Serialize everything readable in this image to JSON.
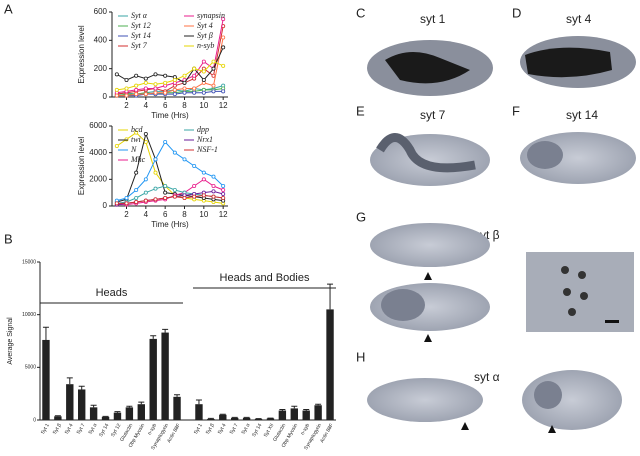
{
  "panels": [
    "A",
    "B",
    "C",
    "D",
    "E",
    "F",
    "G",
    "H"
  ],
  "images": {
    "c": "syt 1",
    "d": "syt 4",
    "e": "syt 7",
    "f": "syt 14",
    "g": "syt β",
    "h": "syt α"
  },
  "chart_data": [
    {
      "type": "line",
      "ylabel": "Expression level",
      "xlabel": "Time (Hrs)",
      "x": [
        1,
        2,
        3,
        4,
        5,
        6,
        7,
        8,
        9,
        10,
        11,
        12
      ],
      "xlim": [
        0.5,
        12.5
      ],
      "xticks": [
        2,
        4,
        6,
        8,
        10,
        12
      ],
      "ylim": [
        0,
        600
      ],
      "yticks": [
        0,
        200,
        400,
        600
      ],
      "series": [
        {
          "name": "Syt α",
          "color": "#3aa6a6",
          "values": [
            20,
            30,
            20,
            30,
            40,
            40,
            50,
            40,
            60,
            50,
            60,
            80
          ]
        },
        {
          "name": "Syt 12",
          "color": "#4caf50",
          "values": [
            10,
            20,
            20,
            30,
            20,
            30,
            30,
            40,
            40,
            50,
            50,
            60
          ]
        },
        {
          "name": "Syt 14",
          "color": "#3f51b5",
          "values": [
            10,
            10,
            10,
            20,
            20,
            20,
            20,
            30,
            30,
            30,
            40,
            40
          ]
        },
        {
          "name": "Syt 7",
          "color": "#d32f2f",
          "values": [
            20,
            30,
            40,
            50,
            60,
            40,
            80,
            100,
            130,
            200,
            150,
            500
          ]
        },
        {
          "name": "synapsin",
          "color": "#e91e8c",
          "values": [
            30,
            40,
            50,
            60,
            60,
            80,
            100,
            120,
            150,
            250,
            200,
            550
          ]
        },
        {
          "name": "Syt 4",
          "color": "#ff7043",
          "values": [
            10,
            10,
            20,
            20,
            30,
            30,
            50,
            60,
            60,
            100,
            80,
            420
          ]
        },
        {
          "name": "Syt β",
          "color": "#222222",
          "values": [
            160,
            120,
            150,
            130,
            160,
            150,
            140,
            100,
            200,
            120,
            200,
            350
          ]
        },
        {
          "name": "n-syb",
          "color": "#e6d400",
          "values": [
            50,
            60,
            80,
            100,
            90,
            100,
            120,
            150,
            200,
            180,
            250,
            220
          ]
        }
      ]
    },
    {
      "type": "line",
      "ylabel": "Expression level",
      "xlabel": "Time (Hrs)",
      "x": [
        1,
        2,
        3,
        4,
        5,
        6,
        7,
        8,
        9,
        10,
        11,
        12
      ],
      "xlim": [
        0.5,
        12.5
      ],
      "xticks": [
        2,
        4,
        6,
        8,
        10,
        12
      ],
      "ylim": [
        0,
        6000
      ],
      "yticks": [
        0,
        2000,
        4000,
        6000
      ],
      "series": [
        {
          "name": "bcd",
          "color": "#e6d400",
          "values": [
            4500,
            5000,
            5500,
            4800,
            2500,
            1500,
            800,
            600,
            500,
            400,
            300,
            200
          ]
        },
        {
          "name": "twi",
          "color": "#222222",
          "values": [
            300,
            500,
            2500,
            5400,
            3500,
            1000,
            900,
            800,
            700,
            600,
            500,
            400
          ]
        },
        {
          "name": "N",
          "color": "#2196f3",
          "values": [
            400,
            600,
            1200,
            2000,
            3500,
            4800,
            4000,
            3500,
            3000,
            2500,
            2200,
            1500
          ]
        },
        {
          "name": "Mhc",
          "color": "#e91e8c",
          "values": [
            100,
            100,
            200,
            300,
            400,
            500,
            800,
            1000,
            1500,
            2000,
            1500,
            1200
          ]
        },
        {
          "name": "dpp",
          "color": "#3aa6a6",
          "values": [
            200,
            300,
            600,
            1000,
            1300,
            1500,
            1200,
            1000,
            900,
            800,
            700,
            600
          ]
        },
        {
          "name": "Nrx1",
          "color": "#6a1b9a",
          "values": [
            100,
            200,
            300,
            400,
            500,
            600,
            700,
            800,
            900,
            1000,
            1100,
            900
          ]
        },
        {
          "name": "NSF-1",
          "color": "#d32f2f",
          "values": [
            200,
            200,
            300,
            400,
            500,
            600,
            700,
            600,
            700,
            800,
            700,
            600
          ]
        }
      ]
    },
    {
      "type": "bar",
      "ylabel": "Average Signal",
      "color": "#222222",
      "annotations": [
        "Heads",
        "Heads and Bodies"
      ],
      "categories": [
        "Syt 1",
        "Syt β",
        "Syt 4",
        "Syt 7",
        "Syt α",
        "Syt 14",
        "Syt 12",
        "Glutactin",
        "Obp Myosin",
        "n-syb",
        "Synaptogyrin",
        "Actin 88F",
        "Syt 1",
        "Syt β",
        "Syt 4",
        "Syt 7",
        "Syt α",
        "Syt 14",
        "Syt XII",
        "Glutactin",
        "Obp Myosin",
        "n-syb",
        "Synaptogyrin",
        "Actin 88F"
      ],
      "values": [
        7600,
        350,
        3400,
        2900,
        1200,
        300,
        700,
        1200,
        1500,
        7700,
        8300,
        2200,
        1500,
        100,
        500,
        200,
        200,
        100,
        150,
        900,
        1100,
        900,
        1400,
        10500
      ],
      "errors": [
        1200,
        50,
        600,
        300,
        200,
        50,
        100,
        100,
        200,
        300,
        300,
        200,
        400,
        50,
        50,
        50,
        50,
        30,
        30,
        100,
        200,
        100,
        100,
        2400
      ],
      "ylim": [
        0,
        15000
      ],
      "yticks": [
        0,
        5000,
        10000,
        15000
      ]
    }
  ]
}
